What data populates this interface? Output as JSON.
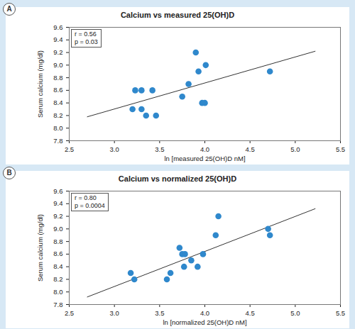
{
  "chart_data": [
    {
      "type": "scatter",
      "panel_label": "A",
      "title": "Calcium vs measured 25(OH)D",
      "x_label": "ln [measured 25(OH)D nM]",
      "y_label": "Serum calcium (mg/dl)",
      "annotations": [
        "r = 0.56",
        "p = 0.03"
      ],
      "x": [
        3.2,
        3.23,
        3.3,
        3.3,
        3.35,
        3.42,
        3.46,
        3.75,
        3.82,
        3.9,
        3.93,
        3.97,
        4.0,
        4.01,
        4.72
      ],
      "y": [
        8.3,
        8.6,
        8.6,
        8.3,
        8.2,
        8.6,
        8.2,
        8.5,
        8.7,
        9.2,
        8.9,
        8.4,
        8.4,
        9.0,
        8.9
      ],
      "trend_line": {
        "x": [
          2.7,
          5.22
        ],
        "y": [
          8.18,
          9.22
        ]
      },
      "color": "#2f88cc",
      "xlim": [
        2.5,
        5.5
      ],
      "xticks": [
        2.5,
        {
          "value": 3,
          "label": "3.0"
        },
        3.5,
        {
          "value": 4,
          "label": "4.0"
        },
        4.5,
        {
          "value": 5,
          "label": "5.0"
        },
        5.5
      ],
      "ylim": [
        7.8,
        9.6
      ],
      "yticks": [
        7.8,
        {
          "value": 8,
          "label": "8.0"
        },
        8.2,
        8.4,
        8.6,
        8.8,
        {
          "value": 9,
          "label": "9.0"
        },
        9.2,
        9.4,
        9.6
      ]
    },
    {
      "type": "scatter",
      "panel_label": "B",
      "title": "Calcium vs normalized 25(OH)D",
      "x_label": "ln [normalized 25(OH)D nM]",
      "y_label": "Serum calcium (mg/dl)",
      "annotations": [
        "r = 0.80",
        "p = 0.0004"
      ],
      "x": [
        3.18,
        3.22,
        3.58,
        3.62,
        3.72,
        3.75,
        3.78,
        3.77,
        3.85,
        3.92,
        3.98,
        4.12,
        4.15,
        4.7,
        4.72
      ],
      "y": [
        8.3,
        8.2,
        8.2,
        8.3,
        8.7,
        8.6,
        8.6,
        8.4,
        8.5,
        8.4,
        8.6,
        8.9,
        9.2,
        9.0,
        8.9
      ],
      "trend_line": {
        "x": [
          2.7,
          5.22
        ],
        "y": [
          7.92,
          9.32
        ]
      },
      "color": "#2f88cc",
      "xlim": [
        2.5,
        5.5
      ],
      "xticks": [
        2.5,
        {
          "value": 3,
          "label": "3.0"
        },
        3.5,
        {
          "value": 4,
          "label": "4.0"
        },
        4.5,
        {
          "value": 5,
          "label": "5.0"
        },
        5.5
      ],
      "ylim": [
        7.8,
        9.6
      ],
      "yticks": [
        7.8,
        {
          "value": 8,
          "label": "8.0"
        },
        8.2,
        8.4,
        8.6,
        8.8,
        {
          "value": 9,
          "label": "9.0"
        },
        9.2,
        9.4,
        9.6
      ]
    }
  ]
}
